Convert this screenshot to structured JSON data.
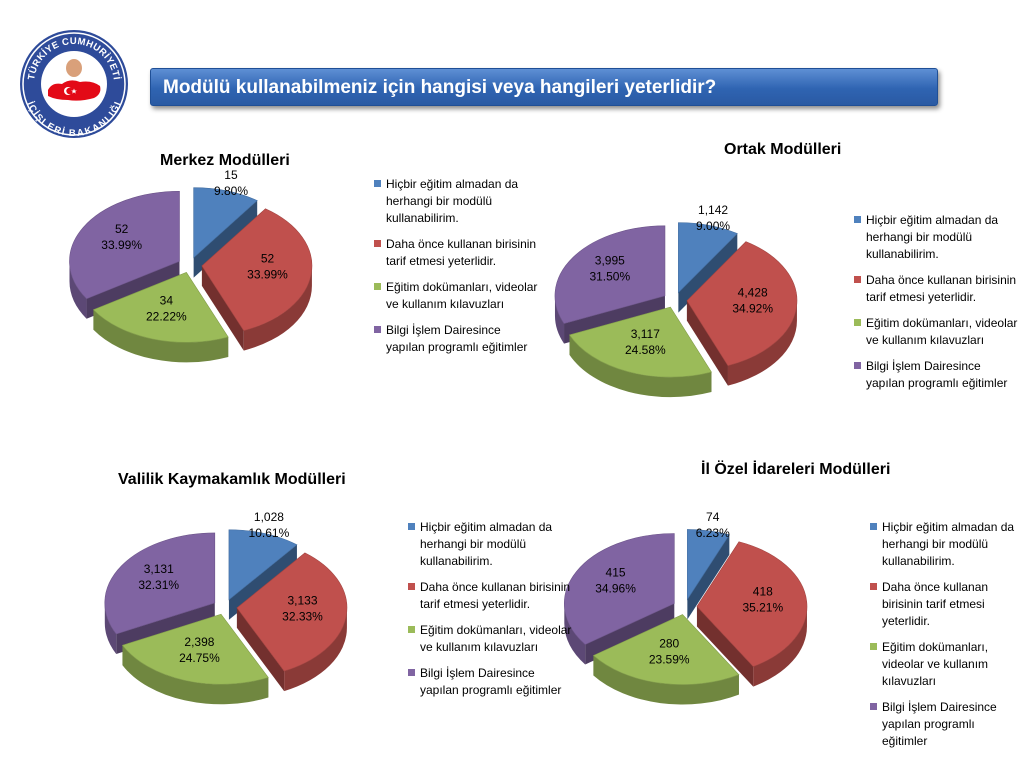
{
  "banner": {
    "title": "Modülü kullanabilmeniz için hangisi veya hangileri yeterlidir?"
  },
  "logo": {
    "top_text": "TÜRKİYE CUMHURİYETİ",
    "bottom_text": "İÇİŞLERİ BAKANLIĞI",
    "ring_color": "#2e4b9a",
    "flag_color": "#e30a17"
  },
  "legend_labels": [
    "Hiçbir eğitim almadan da herhangi bir modülü kullanabilirim.",
    "Daha önce kullanan birisinin tarif etmesi yeterlidir.",
    "Eğitim dokümanları, videolar ve kullanım kılavuzları",
    "Bilgi İşlem Dairesince yapılan programlı eğitimler"
  ],
  "colors": [
    "#4f81bd",
    "#c0504d",
    "#9bbb59",
    "#8064a2"
  ],
  "chart_data": [
    {
      "type": "pie",
      "title": "Merkez Modülleri",
      "categories": [
        "Hiçbir eğitim almadan da herhangi bir modülü kullanabilirim.",
        "Daha önce kullanan birisinin tarif etmesi yeterlidir.",
        "Eğitim dokümanları, videolar ve kullanım kılavuzları",
        "Bilgi İşlem Dairesince yapılan programlı eğitimler"
      ],
      "values": [
        15,
        52,
        34,
        52
      ],
      "value_labels": [
        "15",
        "52",
        "34",
        "52"
      ],
      "percent_labels": [
        "9.80%",
        "33.99%",
        "22.22%",
        "33.99%"
      ],
      "legend_position": "right",
      "style": "3d-exploded"
    },
    {
      "type": "pie",
      "title": "Ortak Modülleri",
      "categories": [
        "Hiçbir eğitim almadan da herhangi bir modülü kullanabilirim.",
        "Daha önce kullanan birisinin tarif etmesi yeterlidir.",
        "Eğitim dokümanları, videolar ve kullanım kılavuzları",
        "Bilgi İşlem Dairesince yapılan programlı eğitimler"
      ],
      "values": [
        1142,
        4428,
        3117,
        3995
      ],
      "value_labels": [
        "1,142",
        "4,428",
        "3,117",
        "3,995"
      ],
      "percent_labels": [
        "9.00%",
        "34.92%",
        "24.58%",
        "31.50%"
      ],
      "legend_position": "right",
      "style": "3d-exploded"
    },
    {
      "type": "pie",
      "title": "Valilik Kaymakamlık Modülleri",
      "categories": [
        "Hiçbir eğitim almadan da herhangi bir modülü kullanabilirim.",
        "Daha önce kullanan birisinin tarif etmesi yeterlidir.",
        "Eğitim dokümanları, videolar ve kullanım kılavuzları",
        "Bilgi İşlem Dairesince yapılan programlı eğitimler"
      ],
      "values": [
        1028,
        3133,
        2398,
        3131
      ],
      "value_labels": [
        "1,028",
        "3,133",
        "2,398",
        "3,131"
      ],
      "percent_labels": [
        "10.61%",
        "32.33%",
        "24.75%",
        "32.31%"
      ],
      "legend_position": "right",
      "style": "3d-exploded"
    },
    {
      "type": "pie",
      "title": "İl Özel İdareleri Modülleri",
      "categories": [
        "Hiçbir eğitim almadan da herhangi bir modülü kullanabilirim.",
        "Daha önce kullanan birisinin tarif etmesi yeterlidir.",
        "Eğitim dokümanları, videolar ve kullanım kılavuzları",
        "Bilgi İşlem Dairesince yapılan programlı eğitimler"
      ],
      "values": [
        74,
        418,
        280,
        415
      ],
      "value_labels": [
        "74",
        "418",
        "280",
        "415"
      ],
      "percent_labels": [
        "6.23%",
        "35.21%",
        "23.59%",
        "34.96%"
      ],
      "legend_position": "right",
      "style": "3d-exploded"
    }
  ]
}
